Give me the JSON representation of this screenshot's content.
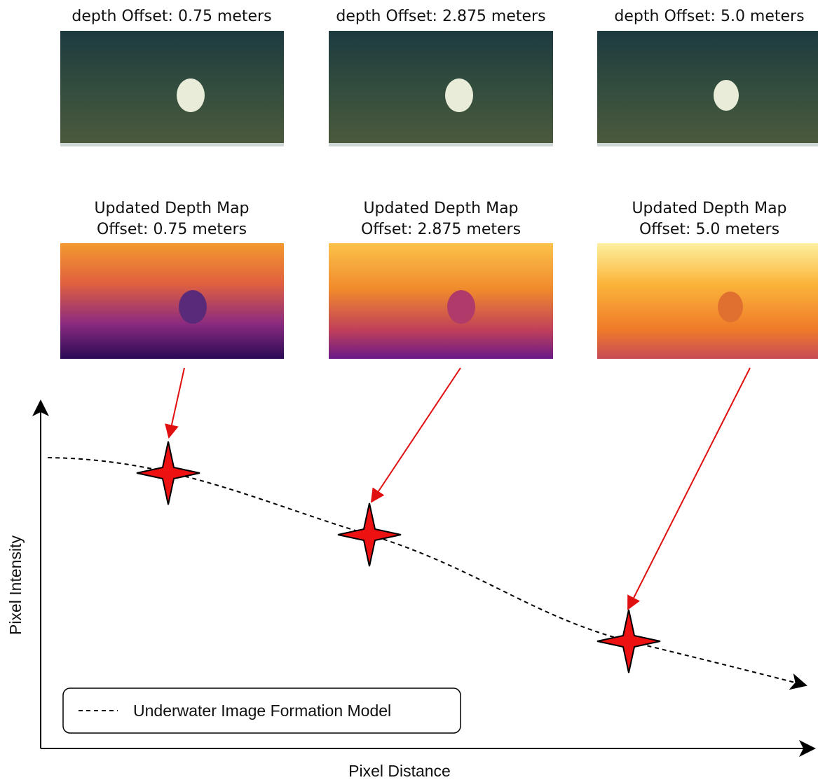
{
  "camera_images": [
    {
      "title": "depth Offset: 0.75 meters"
    },
    {
      "title": "depth Offset: 2.875 meters"
    },
    {
      "title": "depth Offset: 5.0 meters"
    }
  ],
  "depth_maps": [
    {
      "title": [
        "Updated Depth Map",
        "Offset: 0.75 meters"
      ]
    },
    {
      "title": [
        "Updated Depth Map",
        "Offset: 2.875 meters"
      ]
    },
    {
      "title": [
        "Updated Depth Map",
        "Offset: 5.0 meters"
      ]
    }
  ],
  "plot": {
    "y_label": "Pixel Intensity",
    "x_label": "Pixel Distance",
    "legend": "Underwater Image Formation Model"
  }
}
